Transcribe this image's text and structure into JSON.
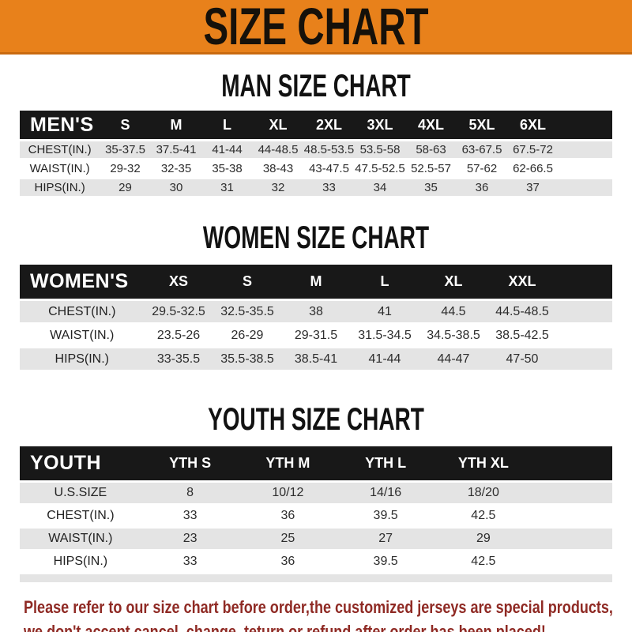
{
  "banner": {
    "title": "SIZE CHART",
    "background_color": "#e8811b",
    "title_color": "#16110a"
  },
  "sections": [
    {
      "heading": "MAN SIZE CHART",
      "table_label": "MEN'S",
      "columns": [
        "S",
        "M",
        "L",
        "XL",
        "2XL",
        "3XL",
        "4XL",
        "5XL",
        "6XL"
      ],
      "rows": [
        {
          "label": "CHEST(IN.)",
          "values": [
            "35-37.5",
            "37.5-41",
            "41-44",
            "44-48.5",
            "48.5-53.5",
            "53.5-58",
            "58-63",
            "63-67.5",
            "67.5-72"
          ]
        },
        {
          "label": "WAIST(IN.)",
          "values": [
            "29-32",
            "32-35",
            "35-38",
            "38-43",
            "43-47.5",
            "47.5-52.5",
            "52.5-57",
            "57-62",
            "62-66.5"
          ]
        },
        {
          "label": "HIPS(IN.)",
          "values": [
            "29",
            "30",
            "31",
            "32",
            "33",
            "34",
            "35",
            "36",
            "37"
          ]
        }
      ]
    },
    {
      "heading": "WOMEN SIZE CHART",
      "table_label": "WOMEN'S",
      "columns": [
        "XS",
        "S",
        "M",
        "L",
        "XL",
        "XXL"
      ],
      "rows": [
        {
          "label": "CHEST(IN.)",
          "values": [
            "29.5-32.5",
            "32.5-35.5",
            "38",
            "41",
            "44.5",
            "44.5-48.5"
          ]
        },
        {
          "label": "WAIST(IN.)",
          "values": [
            "23.5-26",
            "26-29",
            "29-31.5",
            "31.5-34.5",
            "34.5-38.5",
            "38.5-42.5"
          ]
        },
        {
          "label": "HIPS(IN.)",
          "values": [
            "33-35.5",
            "35.5-38.5",
            "38.5-41",
            "41-44",
            "44-47",
            "47-50"
          ]
        }
      ]
    },
    {
      "heading": "YOUTH SIZE CHART",
      "table_label": "YOUTH",
      "columns": [
        "YTH S",
        "YTH M",
        "YTH L",
        "YTH XL"
      ],
      "rows": [
        {
          "label": "U.S.SIZE",
          "values": [
            "8",
            "10/12",
            "14/16",
            "18/20"
          ]
        },
        {
          "label": "CHEST(IN.)",
          "values": [
            "33",
            "36",
            "39.5",
            "42.5"
          ]
        },
        {
          "label": "WAIST(IN.)",
          "values": [
            "23",
            "25",
            "27",
            "29"
          ]
        },
        {
          "label": "HIPS(IN.)",
          "values": [
            "33",
            "36",
            "39.5",
            "42.5"
          ]
        }
      ]
    }
  ],
  "footer": {
    "line1": "Please refer to our size chart before order,the customized jerseys are special products,",
    "line2": "we don't accept cancel, change, teturn or refund after order has been placed!",
    "text_color": "#8f2a24"
  },
  "colors": {
    "header_bar": "#181818",
    "header_bar_text": "#ffffff",
    "row_stripe": "#e4e4e4",
    "banner_border": "#c96a10"
  }
}
